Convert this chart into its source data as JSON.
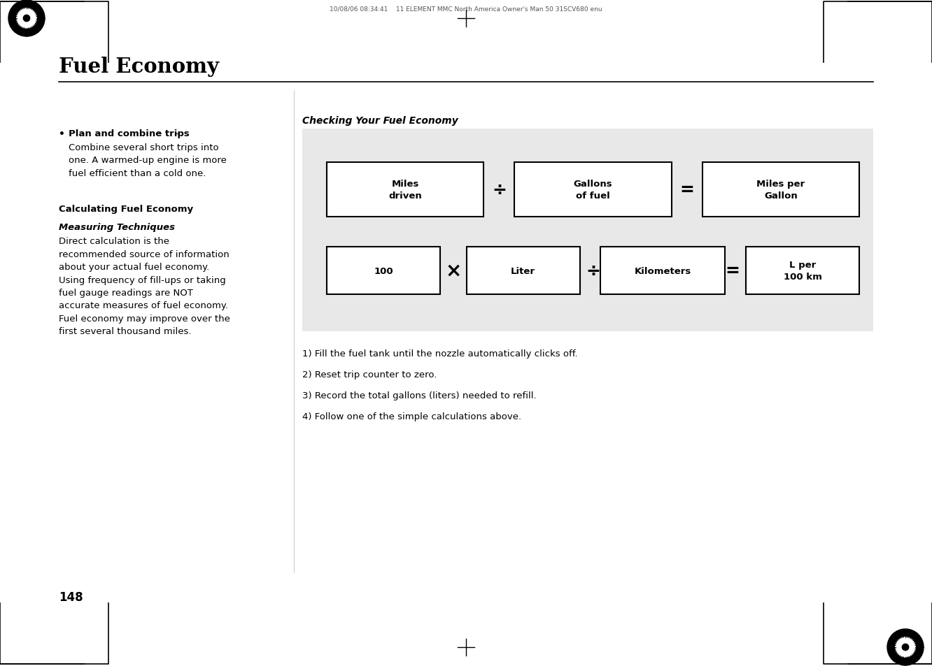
{
  "page_bg": "#ffffff",
  "title": "Fuel Economy",
  "title_fontsize": 20,
  "header_text": "10/08/06 08:34:41    11 ELEMENT MMC North America Owner's Man 50 31SCV680 enu",
  "diagram_title": "Checking Your Fuel Economy",
  "diagram_bg": "#e8e8e8",
  "box_bg": "#ffffff",
  "box_border": "#000000",
  "bullet_bold": "Plan and combine trips",
  "bullet_dash": " –",
  "bullet_sub": "Combine several short trips into\none. A warmed-up engine is more\nfuel efficient than a cold one.",
  "calc_title": "Calculating Fuel Economy",
  "meas_title": "Measuring Techniques",
  "meas_body": "Direct calculation is the\nrecommended source of information\nabout your actual fuel economy.\nUsing frequency of fill-ups or taking\nfuel gauge readings are NOT\naccurate measures of fuel economy.\nFuel economy may improve over the\nfirst several thousand miles.",
  "numbered_items": [
    "1) Fill the fuel tank until the nozzle automatically clicks off.",
    "2) Reset trip counter to zero.",
    "3) Record the total gallons (liters) needed to refill.",
    "4) Follow one of the simple calculations above."
  ],
  "page_number": "148",
  "row1_labels": [
    "Miles\ndriven",
    "Gallons\nof fuel",
    "Miles per\nGallon"
  ],
  "row1_ops": [
    "÷",
    "="
  ],
  "row2_labels": [
    "100",
    "Liter",
    "Kilometers",
    "L per\n100 km"
  ],
  "row2_ops": [
    "×",
    "÷",
    "="
  ]
}
